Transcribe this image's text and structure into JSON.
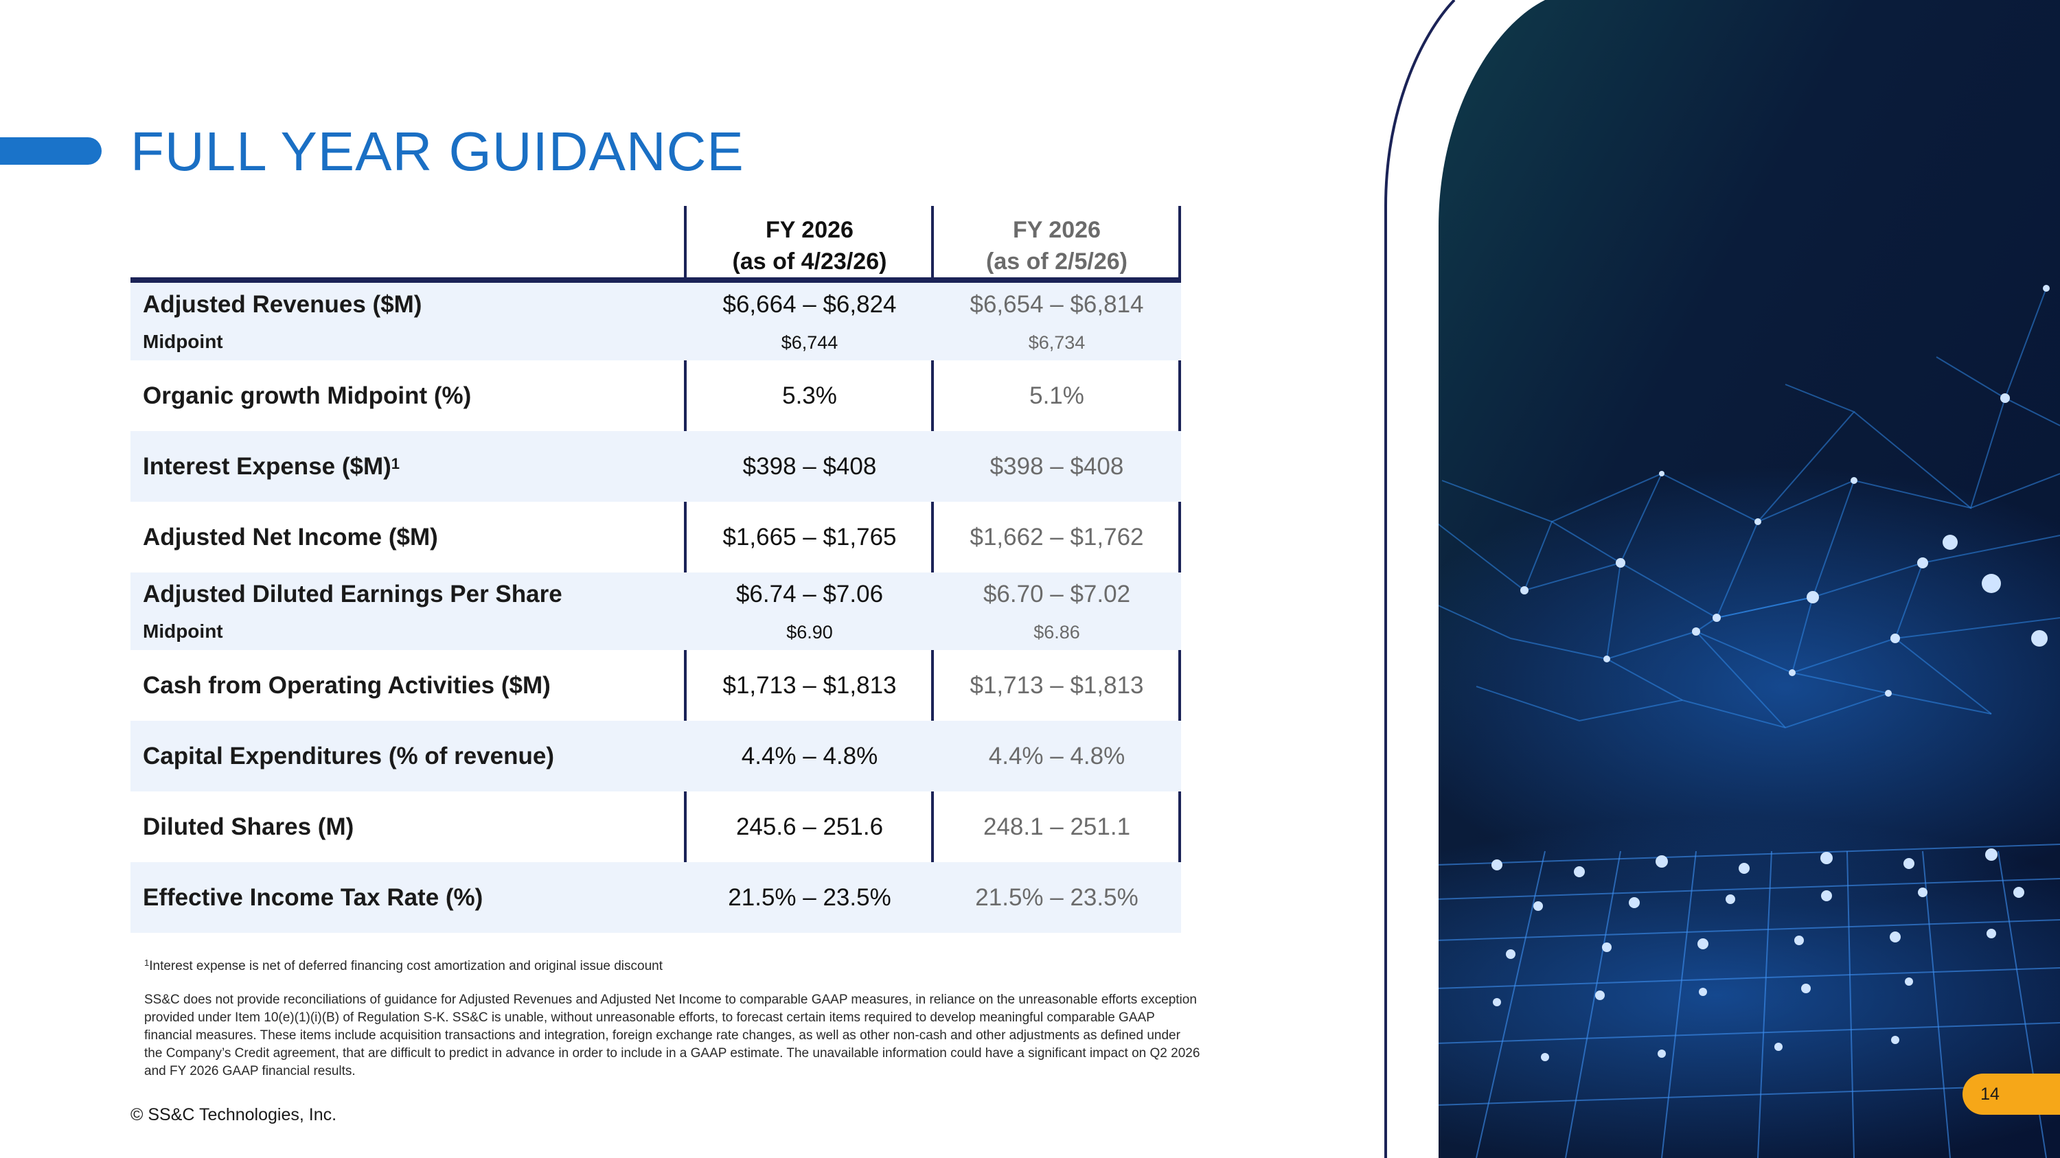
{
  "title": "FULL YEAR GUIDANCE",
  "table": {
    "columns": [
      {
        "line1": "FY 2026",
        "line2": "(as of 4/23/26)"
      },
      {
        "line1": "FY 2026",
        "line2": "(as of 2/5/26)"
      }
    ],
    "rows": [
      {
        "label": "Adjusted Revenues ($M)",
        "sublabel": "Midpoint",
        "current": "$6,664 – $6,824",
        "current_mid": "$6,744",
        "prior": "$6,654 – $6,814",
        "prior_mid": "$6,734"
      },
      {
        "label": "Organic growth Midpoint (%)",
        "current": "5.3%",
        "prior": "5.1%"
      },
      {
        "label": "Interest Expense ($M)",
        "label_sup": "1",
        "current": "$398 – $408",
        "prior": "$398 – $408"
      },
      {
        "label": "Adjusted Net Income ($M)",
        "current": "$1,665 – $1,765",
        "prior": "$1,662 – $1,762"
      },
      {
        "label": "Adjusted Diluted Earnings Per Share",
        "sublabel": "Midpoint",
        "current": "$6.74 – $7.06",
        "current_mid": "$6.90",
        "prior": "$6.70 – $7.02",
        "prior_mid": "$6.86"
      },
      {
        "label": "Cash from Operating Activities ($M)",
        "current": "$1,713 – $1,813",
        "prior": "$1,713 – $1,813"
      },
      {
        "label": "Capital Expenditures (% of revenue)",
        "current": "4.4% – 4.8%",
        "prior": "4.4% – 4.8%"
      },
      {
        "label": "Diluted Shares (M)",
        "current": "245.6 – 251.6",
        "prior": "248.1 – 251.1"
      },
      {
        "label": "Effective Income Tax Rate (%)",
        "current": "21.5% – 23.5%",
        "prior": "21.5% – 23.5%"
      }
    ]
  },
  "footnote": {
    "marker": "1",
    "text": "Interest expense is net of deferred financing cost amortization and original issue discount"
  },
  "disclaimer": "SS&C does not provide reconciliations of guidance for Adjusted Revenues and Adjusted Net Income to comparable GAAP measures, in reliance on the unreasonable efforts exception provided under Item 10(e)(1)(i)(B) of Regulation S-K.  SS&C is unable, without unreasonable efforts, to forecast certain items required to develop meaningful comparable GAAP financial measures.  These items include acquisition transactions and integration, foreign exchange rate changes, as well as other non-cash and other adjustments as defined under the Company’s Credit agreement, that are difficult to predict in advance in order to include in a GAAP estimate.  The unavailable information could have a significant impact on Q2 2026 and FY 2026 GAAP financial results.",
  "copyright": "© SS&C Technologies, Inc.",
  "page_number": "14",
  "colors": {
    "title_blue": "#1a6fc4",
    "navy": "#1b2357",
    "row_shade": "#edf3fc",
    "page_tab": "#f6a718",
    "muted_text": "#6b6b6b"
  }
}
